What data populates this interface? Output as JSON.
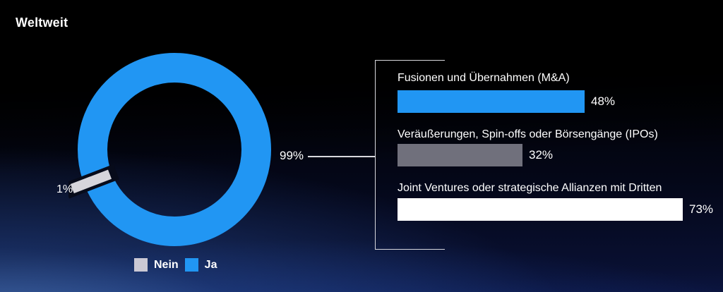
{
  "title": "Weltweit",
  "donut": {
    "ja_label": "99%",
    "nein_label": "1%",
    "ja_color": "#2196f3",
    "nein_color": "#d6d5db"
  },
  "legend": {
    "items": [
      {
        "label": "Nein",
        "color": "#cbc9d4"
      },
      {
        "label": "Ja",
        "color": "#2196f3"
      }
    ]
  },
  "bars": {
    "items": [
      {
        "label": "Fusionen und Übernahmen (M&A)",
        "value": 48,
        "value_label": "48%",
        "color": "#2196f3"
      },
      {
        "label": "Veräußerungen, Spin-offs oder Börsengänge (IPOs)",
        "value": 32,
        "value_label": "32%",
        "color": "#70707c"
      },
      {
        "label": "Joint Ventures oder strategische Allianzen mit Dritten",
        "value": 73,
        "value_label": "73%",
        "color": "#ffffff"
      }
    ]
  },
  "chart_data": [
    {
      "type": "pie",
      "subtype": "donut",
      "title": "Weltweit",
      "categories": [
        "Ja",
        "Nein"
      ],
      "values": [
        99,
        1
      ],
      "labels": [
        "99%",
        "1%"
      ],
      "colors": [
        "#2196f3",
        "#d6d5db"
      ],
      "legend_entries": [
        "Nein",
        "Ja"
      ],
      "legend_position": "bottom"
    },
    {
      "type": "bar",
      "orientation": "horizontal",
      "categories": [
        "Fusionen und Übernahmen (M&A)",
        "Veräußerungen, Spin-offs oder Börsengänge (IPOs)",
        "Joint Ventures oder strategische Allianzen mit Dritten"
      ],
      "values": [
        48,
        32,
        73
      ],
      "value_labels": [
        "48%",
        "32%",
        "73%"
      ],
      "colors": [
        "#2196f3",
        "#70707c",
        "#ffffff"
      ],
      "xlim": [
        0,
        100
      ],
      "grid": false,
      "legend_position": "none"
    }
  ]
}
